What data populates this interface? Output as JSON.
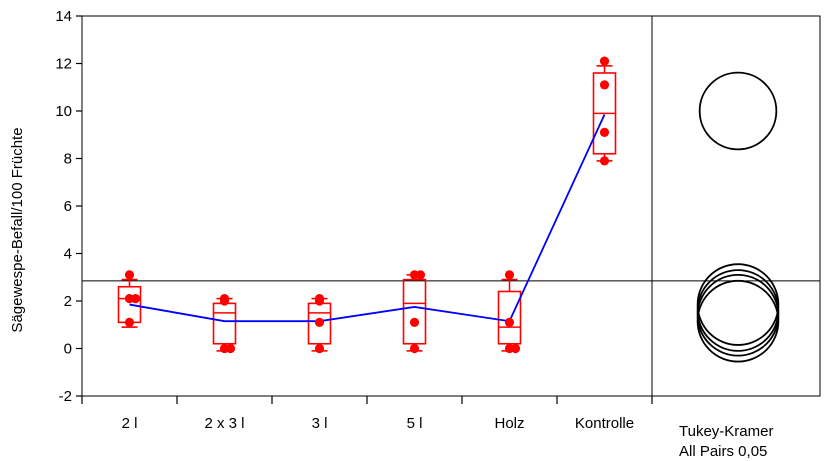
{
  "chart_data": {
    "type": "box",
    "ylabel": "Sägewespe-Befall/100 Früchte",
    "xlabel": "",
    "ylim": [
      -2,
      14
    ],
    "yticks": [
      -2,
      0,
      2,
      4,
      6,
      8,
      10,
      12,
      14
    ],
    "grid": false,
    "categories": [
      "2 l",
      "2 x 3 l",
      "3 l",
      "5 l",
      "Holz",
      "Kontrolle"
    ],
    "grand_mean": 2.85,
    "points": [
      [
        3.1,
        2.1,
        2.1,
        1.1
      ],
      [
        2.1,
        2.0,
        0.0,
        0.0
      ],
      [
        2.1,
        2.0,
        1.1,
        0.0
      ],
      [
        3.1,
        3.1,
        1.1,
        0.0
      ],
      [
        3.1,
        1.1,
        0.0,
        0.0
      ],
      [
        12.1,
        11.1,
        9.1,
        7.9
      ]
    ],
    "boxes": [
      {
        "whisker_low": 0.9,
        "q1": 1.1,
        "median": 2.1,
        "q3": 2.6,
        "whisker_high": 2.9
      },
      {
        "whisker_low": -0.1,
        "q1": 0.2,
        "median": 1.5,
        "q3": 1.9,
        "whisker_high": 2.1
      },
      {
        "whisker_low": -0.1,
        "q1": 0.2,
        "median": 1.5,
        "q3": 1.9,
        "whisker_high": 2.1
      },
      {
        "whisker_low": -0.1,
        "q1": 0.2,
        "median": 1.9,
        "q3": 2.9,
        "whisker_high": 3.1
      },
      {
        "whisker_low": -0.1,
        "q1": 0.2,
        "median": 0.9,
        "q3": 2.4,
        "whisker_high": 2.9
      },
      {
        "whisker_low": 7.9,
        "q1": 8.2,
        "median": 9.9,
        "q3": 11.6,
        "whisker_high": 11.9
      }
    ],
    "means": [
      1.85,
      1.15,
      1.15,
      1.75,
      1.15,
      9.85
    ],
    "comparison_circles": {
      "label_line1": "Tukey-Kramer",
      "label_line2": "All Pairs 0,05",
      "circles": [
        {
          "center": 10.0,
          "radius": 1.9
        },
        {
          "center": 1.85,
          "radius": 2.0
        },
        {
          "center": 1.6,
          "radius": 2.0
        },
        {
          "center": 1.4,
          "radius": 2.0
        },
        {
          "center": 1.15,
          "radius": 2.0
        }
      ]
    },
    "colors": {
      "points": "#ff0000",
      "boxes": "#ff0000",
      "mean_line": "#0000ff",
      "axes": "#000000"
    }
  }
}
